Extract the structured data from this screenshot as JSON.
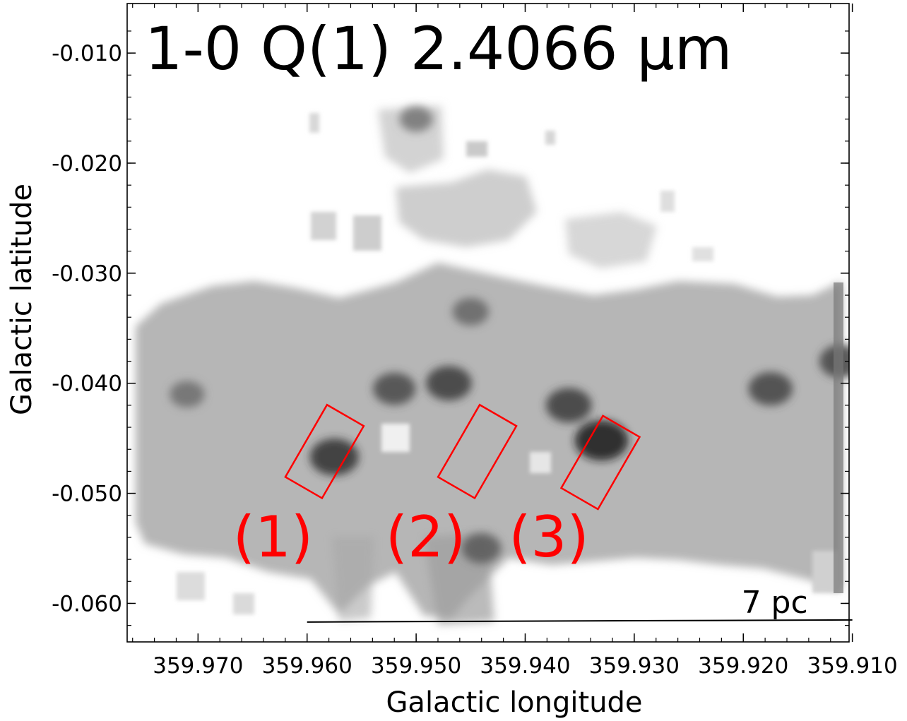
{
  "chart_data": {
    "type": "heatmap",
    "title": "1-0 Q(1) 2.4066 μm",
    "xlabel": "Galactic longitude",
    "ylabel": "Galactic latitude",
    "x_reversed": true,
    "xlim": [
      359.9765,
      359.9103
    ],
    "ylim": [
      -0.0635,
      -0.0055
    ],
    "x_ticks": [
      "359.970",
      "359.960",
      "359.950",
      "359.940",
      "359.930",
      "359.920",
      "359.910"
    ],
    "y_ticks": [
      "-0.010",
      "-0.020",
      "-0.030",
      "-0.040",
      "-0.050",
      "-0.060"
    ],
    "colormap": "gray_r",
    "grid": false,
    "scale_bar": {
      "label": "7 pc",
      "x_from": 359.96,
      "x_to": 359.91,
      "y": -0.0615
    },
    "regions": [
      {
        "label": "(1)",
        "center_l": 359.9584,
        "center_b": -0.0462,
        "color": "#ff0000"
      },
      {
        "label": "(2)",
        "center_l": 359.9444,
        "center_b": -0.0462,
        "color": "#ff0000"
      },
      {
        "label": "(3)",
        "center_l": 359.9331,
        "center_b": -0.0472,
        "color": "#ff0000"
      }
    ],
    "emission_peaks": [
      {
        "l": 359.9575,
        "b": -0.0467,
        "intensity": 0.75
      },
      {
        "l": 359.933,
        "b": -0.0452,
        "intensity": 0.9
      },
      {
        "l": 359.936,
        "b": -0.042,
        "intensity": 0.65
      },
      {
        "l": 359.947,
        "b": -0.04,
        "intensity": 0.65
      },
      {
        "l": 359.952,
        "b": -0.0405,
        "intensity": 0.55
      },
      {
        "l": 359.9175,
        "b": -0.0405,
        "intensity": 0.6
      },
      {
        "l": 359.911,
        "b": -0.038,
        "intensity": 0.6
      },
      {
        "l": 359.971,
        "b": -0.041,
        "intensity": 0.3
      },
      {
        "l": 359.944,
        "b": -0.055,
        "intensity": 0.45
      },
      {
        "l": 359.945,
        "b": -0.0335,
        "intensity": 0.35
      },
      {
        "l": 359.95,
        "b": -0.016,
        "intensity": 0.25
      }
    ]
  }
}
